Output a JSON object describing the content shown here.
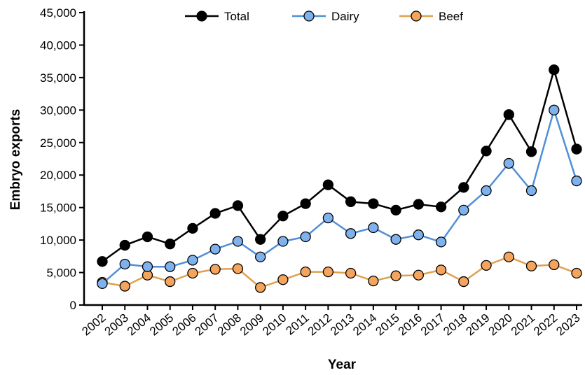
{
  "chart_data": {
    "type": "line",
    "xlabel": "Year",
    "ylabel": "Embryo exports",
    "ylim": [
      0,
      45000
    ],
    "yticks": [
      0,
      5000,
      10000,
      15000,
      20000,
      25000,
      30000,
      35000,
      40000,
      45000
    ],
    "ytick_labels": [
      "0",
      "5,000",
      "10,000",
      "15,000",
      "20,000",
      "25,000",
      "30,000",
      "35,000",
      "40,000",
      "45,000"
    ],
    "categories": [
      "2002",
      "2003",
      "2004",
      "2005",
      "2006",
      "2007",
      "2008",
      "2009",
      "2010",
      "2011",
      "2012",
      "2013",
      "2014",
      "2015",
      "2016",
      "2017",
      "2018",
      "2019",
      "2020",
      "2021",
      "2022",
      "2023"
    ],
    "grid": false,
    "legend_position": "top",
    "series": [
      {
        "name": "Total",
        "line_color": "#000000",
        "marker_color": "#000000",
        "values": [
          6700,
          9200,
          10500,
          9400,
          11800,
          14100,
          15300,
          10100,
          13700,
          15600,
          18500,
          15900,
          15600,
          14600,
          15500,
          15100,
          18100,
          23700,
          29300,
          23600,
          36200,
          24000
        ]
      },
      {
        "name": "Dairy",
        "line_color": "#4f8fd9",
        "marker_color": "#7fb2ec",
        "values": [
          3300,
          6300,
          5900,
          5900,
          6900,
          8600,
          9800,
          7400,
          9800,
          10500,
          13400,
          11000,
          11900,
          10100,
          10800,
          9700,
          14600,
          17600,
          21800,
          17600,
          30000,
          19100
        ]
      },
      {
        "name": "Beef",
        "line_color": "#e0a050",
        "marker_color": "#f4a45c",
        "values": [
          3500,
          2900,
          4600,
          3600,
          4900,
          5500,
          5600,
          2700,
          3900,
          5100,
          5100,
          4900,
          3700,
          4500,
          4600,
          5400,
          3600,
          6100,
          7400,
          6000,
          6200,
          4900
        ]
      }
    ]
  }
}
